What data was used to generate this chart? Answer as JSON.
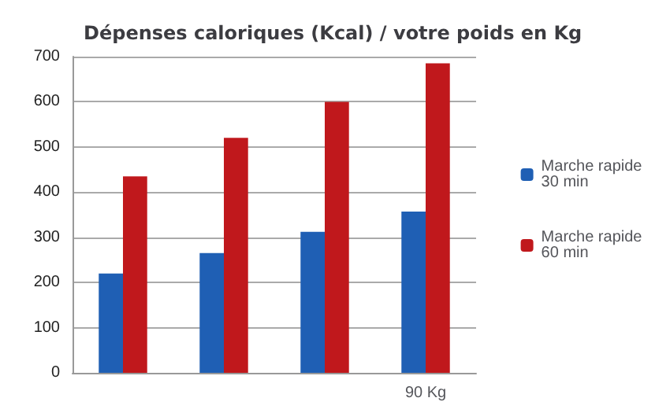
{
  "chart_data": {
    "type": "bar",
    "title": "Dépenses caloriques (Kcal) / votre poids en Kg",
    "categories": [
      null,
      null,
      null,
      "90 Kg"
    ],
    "series": [
      {
        "name": "Marche rapide 30 min",
        "color": "#1f5fb4",
        "values": [
          220,
          265,
          312,
          357
        ]
      },
      {
        "name": "Marche rapide 60 min",
        "color": "#c0181c",
        "values": [
          435,
          520,
          600,
          685
        ]
      }
    ],
    "ylim": [
      0,
      700
    ],
    "yticks": [
      0,
      100,
      200,
      300,
      400,
      500,
      600,
      700
    ],
    "grid": "y",
    "legend": "right"
  }
}
